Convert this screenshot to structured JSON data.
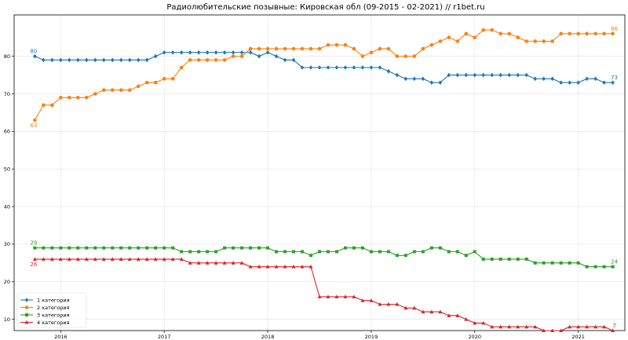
{
  "chart_data": {
    "type": "line",
    "title": "Радиолюбительские позывные: Кировская обл (09-2015 - 02-2021) // r1bet.ru",
    "xlabel": "",
    "ylabel": "",
    "xlim": [
      2015.55,
      2021.45
    ],
    "ylim": [
      7,
      91
    ],
    "grid": true,
    "legend_position": "lower-left",
    "x_ticks": [
      2016,
      2017,
      2018,
      2019,
      2020,
      2021
    ],
    "x_tick_labels": [
      "2016",
      "2017",
      "2018",
      "2019",
      "2020",
      "2021"
    ],
    "y_ticks": [
      10,
      20,
      30,
      40,
      50,
      60,
      70,
      80
    ],
    "y_tick_labels": [
      "10",
      "20",
      "30",
      "40",
      "50",
      "60",
      "70",
      "80"
    ],
    "x_start": 2015.75,
    "x_step": 0.08333,
    "series": [
      {
        "name": "1 категория",
        "color": "#1f77b4",
        "marker": "diamond",
        "values": [
          80,
          79,
          79,
          79,
          79,
          79,
          79,
          79,
          79,
          79,
          79,
          79,
          79,
          79,
          80,
          81,
          81,
          81,
          81,
          81,
          81,
          81,
          81,
          81,
          81,
          81,
          80,
          81,
          80,
          79,
          79,
          77,
          77,
          77,
          77,
          77,
          77,
          77,
          77,
          77,
          77,
          76,
          75,
          74,
          74,
          74,
          73,
          73,
          75,
          75,
          75,
          75,
          75,
          75,
          75,
          75,
          75,
          75,
          74,
          74,
          74,
          73,
          73,
          73,
          74,
          74,
          73,
          73
        ],
        "first_label": "80",
        "last_label": "73"
      },
      {
        "name": "2 категория",
        "color": "#ff7f0e",
        "marker": "circle",
        "values": [
          63,
          67,
          67,
          69,
          69,
          69,
          69,
          70,
          71,
          71,
          71,
          71,
          72,
          73,
          73,
          74,
          74,
          77,
          79,
          79,
          79,
          79,
          79,
          80,
          80,
          82,
          82,
          82,
          82,
          82,
          82,
          82,
          82,
          82,
          83,
          83,
          83,
          82,
          80,
          81,
          82,
          82,
          80,
          80,
          80,
          82,
          83,
          84,
          85,
          84,
          86,
          85,
          87,
          87,
          86,
          86,
          85,
          84,
          84,
          84,
          84,
          86,
          86,
          86,
          86,
          86,
          86,
          86
        ],
        "first_label": "63",
        "last_label": "86"
      },
      {
        "name": "3 категория",
        "color": "#2ca02c",
        "marker": "square",
        "values": [
          29,
          29,
          29,
          29,
          29,
          29,
          29,
          29,
          29,
          29,
          29,
          29,
          29,
          29,
          29,
          29,
          29,
          28,
          28,
          28,
          28,
          28,
          29,
          29,
          29,
          29,
          29,
          29,
          28,
          28,
          28,
          28,
          27,
          28,
          28,
          28,
          29,
          29,
          29,
          28,
          28,
          28,
          27,
          27,
          28,
          28,
          29,
          29,
          28,
          28,
          27,
          28,
          26,
          26,
          26,
          26,
          26,
          26,
          25,
          25,
          25,
          25,
          25,
          25,
          24,
          24,
          24,
          24
        ],
        "first_label": "29",
        "last_label": "24"
      },
      {
        "name": "4 категория",
        "color": "#d62728",
        "marker": "triangle",
        "values": [
          26,
          26,
          26,
          26,
          26,
          26,
          26,
          26,
          26,
          26,
          26,
          26,
          26,
          26,
          26,
          26,
          26,
          26,
          25,
          25,
          25,
          25,
          25,
          25,
          25,
          24,
          24,
          24,
          24,
          24,
          24,
          24,
          24,
          16,
          16,
          16,
          16,
          16,
          15,
          15,
          14,
          14,
          14,
          13,
          13,
          12,
          12,
          12,
          11,
          11,
          10,
          9,
          9,
          8,
          8,
          8,
          8,
          8,
          8,
          7,
          7,
          7,
          8,
          8,
          8,
          8,
          8,
          7
        ],
        "first_label": "26",
        "last_label": "7"
      }
    ]
  }
}
